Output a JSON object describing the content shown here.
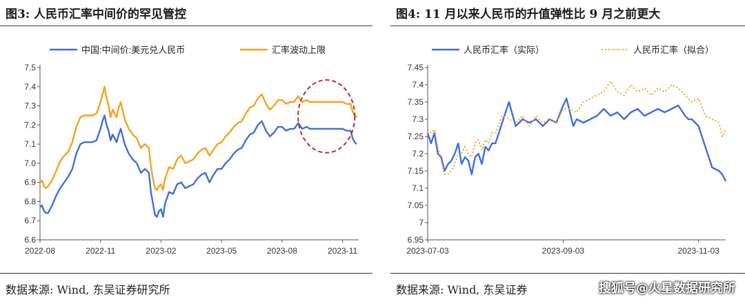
{
  "left_panel": {
    "title": "图3:  人民币汇率中间价的罕见管控",
    "source": "数据来源:  Wind,  东吴证券研究所"
  },
  "right_panel": {
    "title": "图4:  11 月以来人民币的升值弹性比 9 月之前更大",
    "source": "数据来源:  Wind,  东吴证券"
  },
  "watermark": "搜狐号@火星数据研究所",
  "colors": {
    "blue": "#3b6fe0",
    "orange": "#f5a21b",
    "annotation": "#c0282b"
  },
  "chart_data": [
    {
      "type": "line",
      "ylim": [
        6.6,
        7.5
      ],
      "yticks": [
        "7.5",
        "7.4",
        "7.3",
        "7.2",
        "7.1",
        "7.0",
        "6.9",
        "6.8",
        "6.7",
        "6.6"
      ],
      "xlim": [
        0,
        15.8
      ],
      "xticks": [
        {
          "x": 0,
          "label": "2022-08"
        },
        {
          "x": 3,
          "label": "2022-11"
        },
        {
          "x": 6,
          "label": "2023-02"
        },
        {
          "x": 9,
          "label": "2023-05"
        },
        {
          "x": 12,
          "label": "2023-08"
        },
        {
          "x": 15,
          "label": "2023-11"
        }
      ],
      "annotation": "dashed-ellipse highlighting flat fixing Sep–Nov 2023",
      "series": [
        {
          "name": "中国:中间价:美元兑人民币",
          "color": "#3b6fe0",
          "x": [
            0,
            0.1,
            0.2,
            0.3,
            0.4,
            0.6,
            0.8,
            1.0,
            1.2,
            1.4,
            1.6,
            1.8,
            2.0,
            2.2,
            2.4,
            2.6,
            2.8,
            3.0,
            3.1,
            3.2,
            3.3,
            3.4,
            3.5,
            3.6,
            3.7,
            3.8,
            3.9,
            4.0,
            4.2,
            4.4,
            4.6,
            4.8,
            5.0,
            5.2,
            5.4,
            5.5,
            5.6,
            5.7,
            5.8,
            5.9,
            6.0,
            6.1,
            6.2,
            6.4,
            6.6,
            6.8,
            7.0,
            7.2,
            7.4,
            7.6,
            7.8,
            8.0,
            8.2,
            8.4,
            8.6,
            8.8,
            9.0,
            9.2,
            9.4,
            9.6,
            9.8,
            10.0,
            10.2,
            10.4,
            10.6,
            10.8,
            11.0,
            11.2,
            11.4,
            11.6,
            11.8,
            12.0,
            12.2,
            12.4,
            12.6,
            12.8,
            13.0,
            13.2,
            13.4,
            13.6,
            13.8,
            14.0,
            14.2,
            14.4,
            14.6,
            14.8,
            15.0,
            15.2,
            15.4,
            15.5,
            15.6,
            15.7
          ],
          "y": [
            6.77,
            6.78,
            6.75,
            6.74,
            6.74,
            6.78,
            6.83,
            6.87,
            6.9,
            6.93,
            6.97,
            7.05,
            7.1,
            7.11,
            7.11,
            7.11,
            7.12,
            7.18,
            7.22,
            7.25,
            7.2,
            7.17,
            7.12,
            7.15,
            7.13,
            7.11,
            7.15,
            7.18,
            7.1,
            7.05,
            7.02,
            7.0,
            6.95,
            6.97,
            6.95,
            6.85,
            6.79,
            6.73,
            6.72,
            6.75,
            6.76,
            6.72,
            6.79,
            6.85,
            6.84,
            6.89,
            6.9,
            6.87,
            6.88,
            6.89,
            6.92,
            6.94,
            6.95,
            6.9,
            6.94,
            6.97,
            6.97,
            7.0,
            7.02,
            7.05,
            7.07,
            7.08,
            7.12,
            7.15,
            7.16,
            7.2,
            7.22,
            7.17,
            7.14,
            7.16,
            7.19,
            7.19,
            7.17,
            7.18,
            7.18,
            7.21,
            7.18,
            7.19,
            7.18,
            7.18,
            7.18,
            7.18,
            7.18,
            7.18,
            7.18,
            7.18,
            7.18,
            7.17,
            7.17,
            7.13,
            7.11,
            7.1
          ]
        },
        {
          "name": "汇率波动上限",
          "color": "#f5a21b",
          "x": [
            0,
            0.1,
            0.2,
            0.3,
            0.4,
            0.6,
            0.8,
            1.0,
            1.2,
            1.4,
            1.6,
            1.8,
            2.0,
            2.2,
            2.4,
            2.6,
            2.8,
            3.0,
            3.1,
            3.2,
            3.3,
            3.4,
            3.5,
            3.6,
            3.7,
            3.8,
            3.9,
            4.0,
            4.2,
            4.4,
            4.6,
            4.8,
            5.0,
            5.2,
            5.4,
            5.5,
            5.6,
            5.7,
            5.8,
            5.9,
            6.0,
            6.1,
            6.2,
            6.4,
            6.6,
            6.8,
            7.0,
            7.2,
            7.4,
            7.6,
            7.8,
            8.0,
            8.2,
            8.4,
            8.6,
            8.8,
            9.0,
            9.2,
            9.4,
            9.6,
            9.8,
            10.0,
            10.2,
            10.4,
            10.6,
            10.8,
            11.0,
            11.2,
            11.4,
            11.6,
            11.8,
            12.0,
            12.2,
            12.4,
            12.6,
            12.8,
            13.0,
            13.2,
            13.4,
            13.6,
            13.8,
            14.0,
            14.2,
            14.4,
            14.6,
            14.8,
            15.0,
            15.2,
            15.4,
            15.5,
            15.6,
            15.7
          ],
          "y": [
            6.9,
            6.91,
            6.88,
            6.87,
            6.88,
            6.91,
            6.96,
            7.01,
            7.04,
            7.06,
            7.11,
            7.19,
            7.24,
            7.25,
            7.25,
            7.25,
            7.26,
            7.32,
            7.36,
            7.4,
            7.34,
            7.3,
            7.24,
            7.28,
            7.26,
            7.24,
            7.29,
            7.32,
            7.23,
            7.18,
            7.15,
            7.13,
            7.08,
            7.1,
            7.08,
            6.98,
            6.92,
            6.87,
            6.86,
            6.88,
            6.89,
            6.86,
            6.92,
            6.98,
            6.97,
            7.02,
            7.04,
            7.0,
            7.01,
            7.02,
            7.05,
            7.07,
            7.08,
            7.04,
            7.07,
            7.1,
            7.11,
            7.14,
            7.16,
            7.19,
            7.21,
            7.22,
            7.26,
            7.29,
            7.3,
            7.34,
            7.36,
            7.31,
            7.28,
            7.3,
            7.33,
            7.33,
            7.31,
            7.32,
            7.32,
            7.35,
            7.32,
            7.33,
            7.32,
            7.32,
            7.32,
            7.32,
            7.32,
            7.32,
            7.32,
            7.32,
            7.32,
            7.31,
            7.31,
            7.27,
            7.25,
            7.24
          ]
        }
      ]
    },
    {
      "type": "line",
      "ylim": [
        6.95,
        7.45
      ],
      "yticks": [
        "7.45",
        "7.4",
        "7.35",
        "7.3",
        "7.25",
        "7.2",
        "7.15",
        "7.1",
        "7.05",
        "7",
        "6.95"
      ],
      "xlim": [
        0,
        4.4
      ],
      "xticks": [
        {
          "x": 0,
          "label": "2023-07-03"
        },
        {
          "x": 2,
          "label": "2023-09-03"
        },
        {
          "x": 4,
          "label": "2023-11-03"
        }
      ],
      "series": [
        {
          "name": "人民币汇率（实际）",
          "color": "#3b6fe0",
          "style": "solid",
          "x": [
            0,
            0.05,
            0.1,
            0.15,
            0.2,
            0.25,
            0.3,
            0.35,
            0.4,
            0.45,
            0.5,
            0.55,
            0.6,
            0.65,
            0.7,
            0.75,
            0.8,
            0.85,
            0.9,
            0.95,
            1.0,
            1.1,
            1.2,
            1.3,
            1.4,
            1.5,
            1.6,
            1.7,
            1.8,
            1.9,
            2.0,
            2.05,
            2.1,
            2.15,
            2.2,
            2.3,
            2.4,
            2.5,
            2.6,
            2.7,
            2.8,
            2.9,
            3.0,
            3.1,
            3.2,
            3.3,
            3.4,
            3.5,
            3.6,
            3.7,
            3.8,
            3.85,
            3.9,
            4.0,
            4.1,
            4.2,
            4.3,
            4.35,
            4.4
          ],
          "y": [
            7.26,
            7.23,
            7.26,
            7.2,
            7.19,
            7.15,
            7.17,
            7.18,
            7.2,
            7.23,
            7.17,
            7.19,
            7.18,
            7.14,
            7.19,
            7.2,
            7.17,
            7.22,
            7.21,
            7.23,
            7.23,
            7.29,
            7.35,
            7.28,
            7.3,
            7.29,
            7.3,
            7.28,
            7.3,
            7.29,
            7.34,
            7.36,
            7.32,
            7.28,
            7.3,
            7.29,
            7.3,
            7.31,
            7.33,
            7.31,
            7.32,
            7.3,
            7.32,
            7.33,
            7.31,
            7.32,
            7.33,
            7.32,
            7.33,
            7.34,
            7.31,
            7.3,
            7.3,
            7.28,
            7.22,
            7.16,
            7.15,
            7.14,
            7.12
          ]
        },
        {
          "name": "人民币汇率（拟合）",
          "color": "#f5a21b",
          "style": "dotted",
          "x": [
            0,
            0.05,
            0.1,
            0.15,
            0.2,
            0.25,
            0.3,
            0.35,
            0.4,
            0.45,
            0.5,
            0.55,
            0.6,
            0.65,
            0.7,
            0.75,
            0.8,
            0.85,
            0.9,
            0.95,
            1.0,
            1.1,
            1.2,
            1.3,
            1.4,
            1.5,
            1.6,
            1.7,
            1.8,
            1.9,
            2.0,
            2.1,
            2.2,
            2.3,
            2.4,
            2.5,
            2.6,
            2.7,
            2.8,
            2.9,
            3.0,
            3.1,
            3.2,
            3.3,
            3.4,
            3.5,
            3.6,
            3.7,
            3.8,
            3.9,
            4.0,
            4.1,
            4.2,
            4.3,
            4.35,
            4.4
          ],
          "y": [
            7.27,
            7.26,
            7.27,
            7.22,
            7.18,
            7.14,
            7.14,
            7.15,
            7.17,
            7.2,
            7.2,
            7.22,
            7.2,
            7.19,
            7.23,
            7.24,
            7.21,
            7.24,
            7.23,
            7.26,
            7.26,
            7.31,
            7.3,
            7.29,
            7.31,
            7.28,
            7.31,
            7.29,
            7.3,
            7.29,
            7.33,
            7.33,
            7.32,
            7.35,
            7.36,
            7.37,
            7.38,
            7.41,
            7.38,
            7.37,
            7.4,
            7.38,
            7.39,
            7.37,
            7.39,
            7.38,
            7.4,
            7.39,
            7.37,
            7.35,
            7.36,
            7.31,
            7.3,
            7.29,
            7.25,
            7.27
          ]
        }
      ]
    }
  ]
}
